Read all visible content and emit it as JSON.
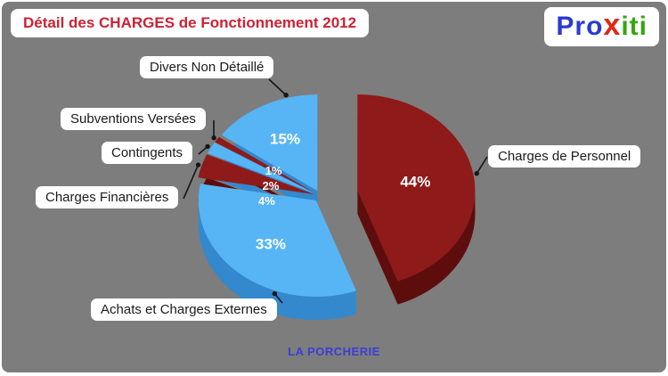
{
  "header": {
    "title": "Détail des CHARGES de Fonctionnement 2012",
    "color": "#cc2233"
  },
  "logo": {
    "parts": [
      {
        "text": "Pro",
        "color": "#2a3bd0"
      },
      {
        "text": "x",
        "color": "#e02616"
      },
      {
        "text": "iti",
        "color": "#36a60e"
      }
    ]
  },
  "footer": {
    "org": "LA PORCHERIE",
    "color": "#3c3cd9"
  },
  "chart_data": {
    "type": "pie",
    "style": "3d-exploded",
    "title": "Détail des CHARGES de Fonctionnement 2012",
    "unit": "%",
    "percent_label_color": "#ffffff",
    "start_angle_deg": 0,
    "direction": "clockwise",
    "slices": [
      {
        "label": "Charges de Personnel",
        "value": 44,
        "color": "#8e1a1a",
        "wall": "#5e0d0d",
        "explode": 42
      },
      {
        "label": "Achats et Charges Externes",
        "value": 33,
        "color": "#57b5f5",
        "wall": "#3488cd",
        "explode": 8
      },
      {
        "label": "Charges Financières",
        "value": 4,
        "color": "#8e1a1a",
        "wall": "#5e0d0d",
        "explode": 8
      },
      {
        "label": "Contingents",
        "value": 2,
        "color": "#57b5f5",
        "wall": "#3488cd",
        "explode": 8
      },
      {
        "label": "Subventions Versées",
        "value": 1,
        "color": "#8e1a1a",
        "wall": "#5e0d0d",
        "explode": 8
      },
      {
        "label": "Divers Non Détaillé",
        "value": 15,
        "color": "#57b5f5",
        "wall": "#3488cd",
        "explode": 8
      }
    ]
  }
}
